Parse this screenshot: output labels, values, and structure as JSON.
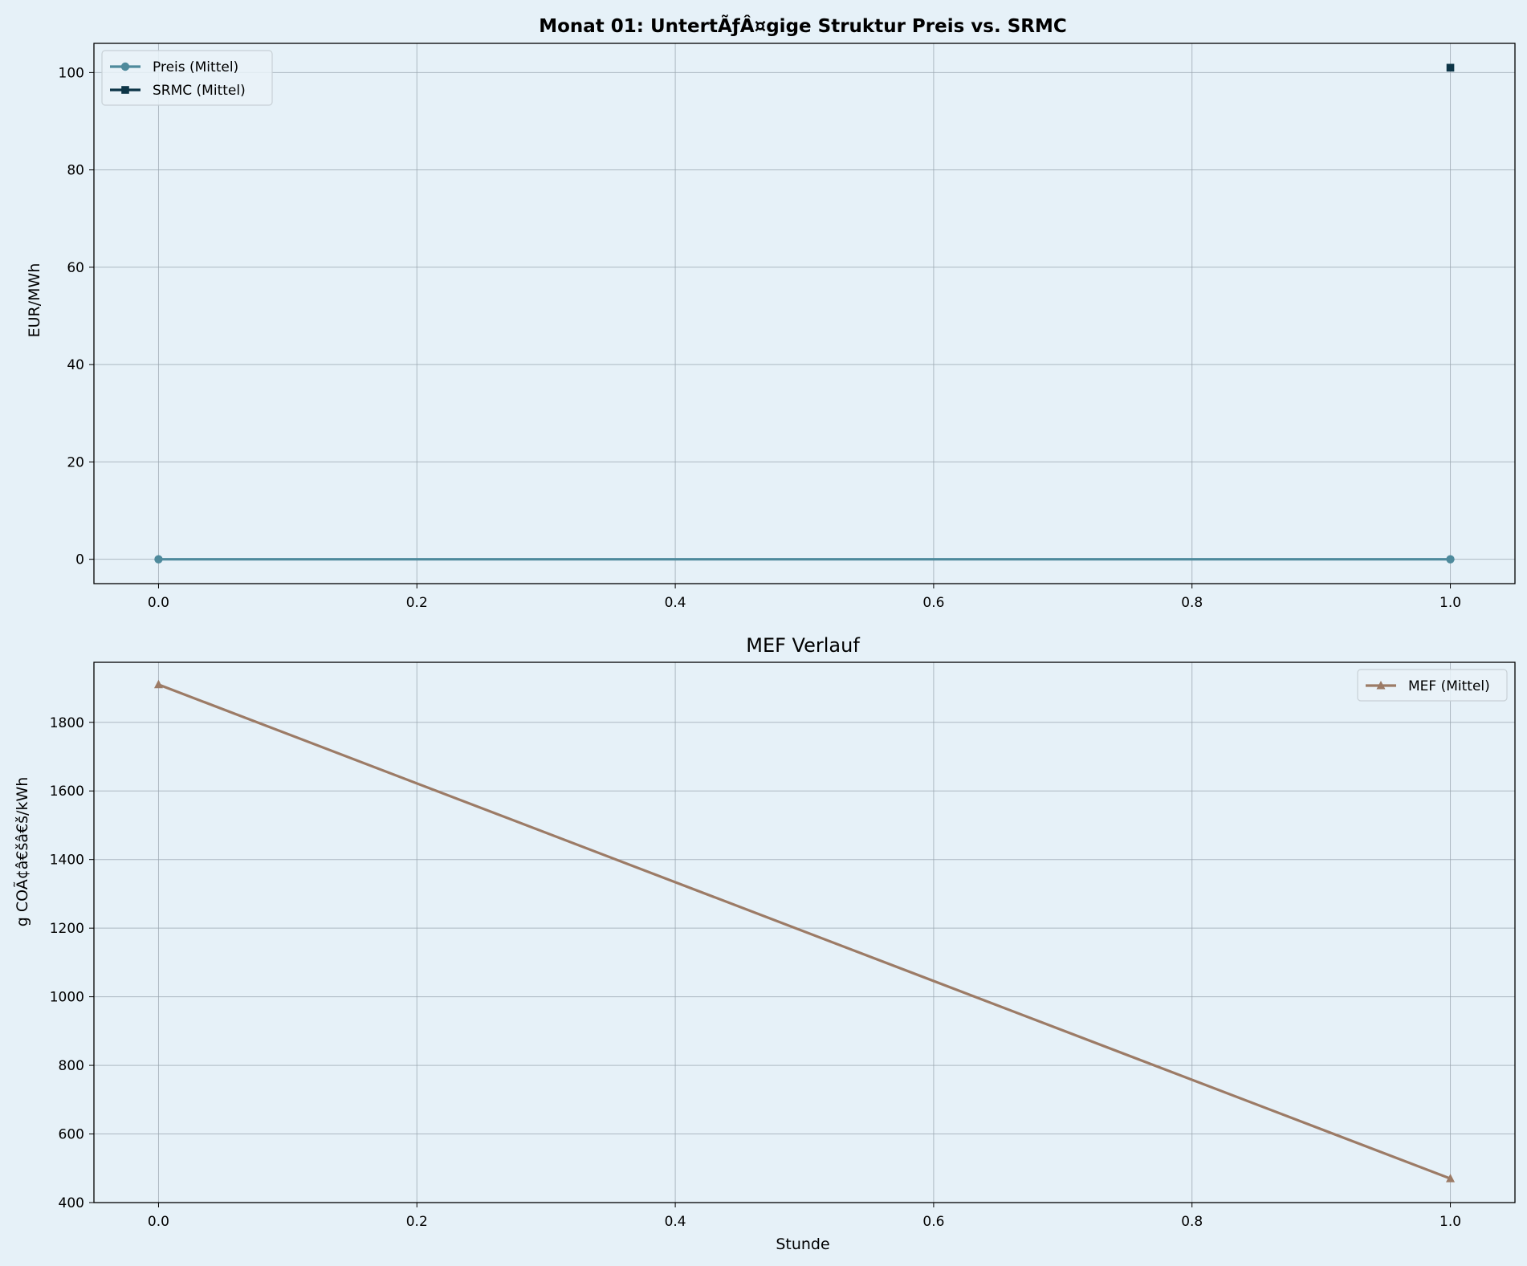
{
  "chart_data": [
    {
      "type": "line",
      "title": "Monat 01: UntertÃƒÂ¤gige Struktur Preis vs. SRMC",
      "xlabel": "",
      "ylabel": "EUR/MWh",
      "xlim": [
        -0.05,
        1.05
      ],
      "ylim": [
        -5,
        106
      ],
      "xticks": [
        0.0,
        0.2,
        0.4,
        0.6,
        0.8,
        1.0
      ],
      "xtick_labels": [
        "0.0",
        "0.2",
        "0.4",
        "0.6",
        "0.8",
        "1.0"
      ],
      "yticks": [
        0,
        20,
        40,
        60,
        80,
        100
      ],
      "ytick_labels": [
        "0",
        "20",
        "40",
        "60",
        "80",
        "100"
      ],
      "grid": true,
      "legend": "upper left",
      "series": [
        {
          "name": "Preis (Mittel)",
          "color": "#4e8a9c",
          "marker": "circle",
          "x": [
            0,
            1
          ],
          "y": [
            0,
            0
          ]
        },
        {
          "name": "SRMC (Mittel)",
          "color": "#0d3547",
          "marker": "square",
          "x": [
            1
          ],
          "y": [
            101
          ]
        }
      ]
    },
    {
      "type": "line",
      "title": "MEF Verlauf",
      "xlabel": "Stunde",
      "ylabel": "g COÃ¢â€šâ€š/kWh",
      "xlim": [
        -0.05,
        1.05
      ],
      "ylim": [
        400,
        1975
      ],
      "xticks": [
        0.0,
        0.2,
        0.4,
        0.6,
        0.8,
        1.0
      ],
      "xtick_labels": [
        "0.0",
        "0.2",
        "0.4",
        "0.6",
        "0.8",
        "1.0"
      ],
      "yticks": [
        400,
        600,
        800,
        1000,
        1200,
        1400,
        1600,
        1800
      ],
      "ytick_labels": [
        "400",
        "600",
        "800",
        "1000",
        "1200",
        "1400",
        "1600",
        "1800"
      ],
      "grid": true,
      "legend": "upper right",
      "series": [
        {
          "name": "MEF (Mittel)",
          "color": "#9c7b66",
          "marker": "triangle",
          "x": [
            0,
            1
          ],
          "y": [
            1910,
            470
          ]
        }
      ]
    }
  ],
  "colors": {
    "background": "#e6f1f8",
    "axes_face": "#e6f1f8",
    "grid": "#9aa6b0"
  }
}
